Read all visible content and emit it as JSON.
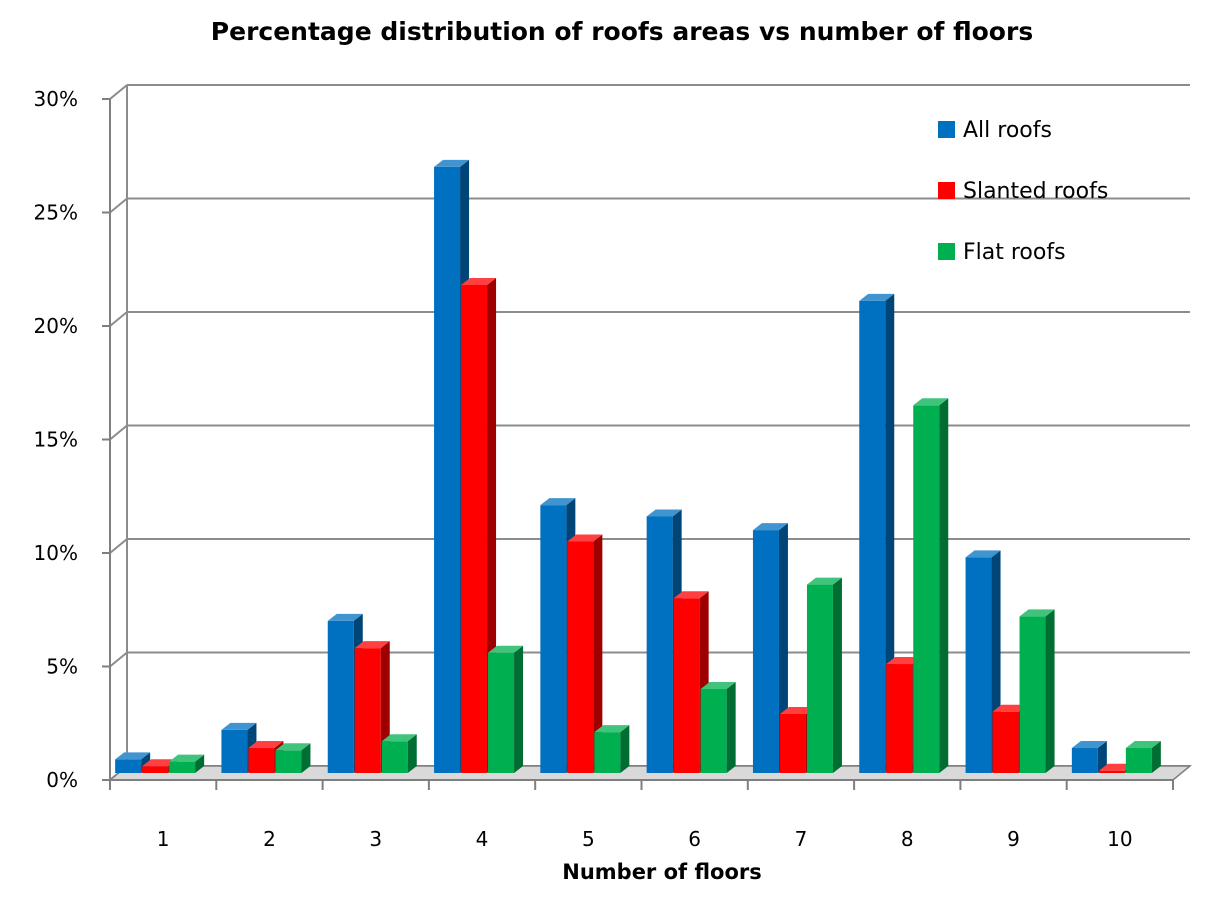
{
  "chart_data": {
    "type": "bar",
    "title": "Percentage distribution of roofs areas  vs number of floors",
    "xlabel": "Number of floors",
    "ylabel": "",
    "categories": [
      "1",
      "2",
      "3",
      "4",
      "5",
      "6",
      "7",
      "8",
      "9",
      "10"
    ],
    "y_ticks": [
      "0%",
      "5%",
      "10%",
      "15%",
      "20%",
      "25%",
      "30%"
    ],
    "ylim": [
      0,
      30
    ],
    "grid": true,
    "legend_position": "top-right",
    "series": [
      {
        "name": "All roofs",
        "color": "#0070C0",
        "values": [
          0.6,
          1.9,
          6.7,
          26.7,
          11.8,
          11.3,
          10.7,
          20.8,
          9.5,
          1.1
        ]
      },
      {
        "name": "Slanted roofs",
        "color": "#FF0000",
        "values": [
          0.3,
          1.1,
          5.5,
          21.5,
          10.2,
          7.7,
          2.6,
          4.8,
          2.7,
          0.1
        ]
      },
      {
        "name": "Flat roofs",
        "color": "#00B050",
        "values": [
          0.5,
          1.0,
          1.4,
          5.3,
          1.8,
          3.7,
          8.3,
          16.2,
          6.9,
          1.1
        ]
      }
    ]
  }
}
